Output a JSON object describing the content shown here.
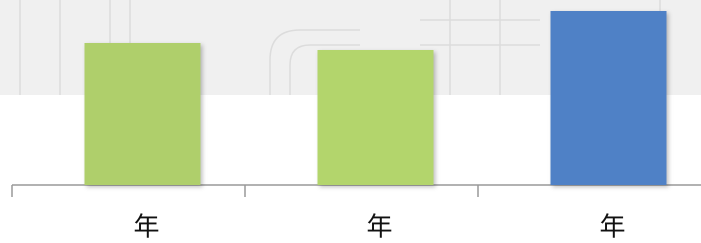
{
  "chart_data": {
    "type": "bar",
    "categories": [
      "年",
      "年",
      "年"
    ],
    "values": [
      142,
      135,
      174
    ],
    "colors": [
      "#afcf6b",
      "#b3d56c",
      "#4f81c6"
    ]
  }
}
